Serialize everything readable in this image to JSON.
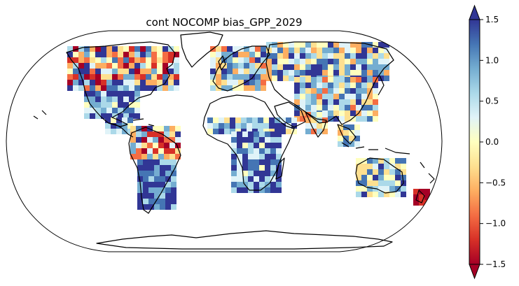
{
  "map": {
    "title": "cont NOCOMP bias_GPP_2029",
    "projection": "Robinson (global)",
    "colormap": "RdYlBu",
    "value_range": [
      -1.5,
      1.5
    ],
    "missing_data": "white (ocean and Sahara, Arabia, Greenland, Antarctica)"
  },
  "colorbar": {
    "ticks": [
      "1.5",
      "1.0",
      "0.5",
      "0.0",
      "−0.5",
      "−1.0",
      "−1.5"
    ],
    "extend": "both",
    "colors": [
      "#a50026",
      "#d73027",
      "#f46d43",
      "#fdae61",
      "#fee090",
      "#ffffbf",
      "#e0f3f8",
      "#abd9e9",
      "#74add1",
      "#4575b4",
      "#313695"
    ]
  },
  "chart_data": {
    "type": "heatmap",
    "title": "cont NOCOMP bias_GPP_2029",
    "colorbar_range": [
      -1.5,
      1.5
    ],
    "colorbar_ticks": [
      -1.5,
      -1.0,
      -0.5,
      0.0,
      0.5,
      1.0,
      1.5
    ],
    "extend": "both"
  }
}
